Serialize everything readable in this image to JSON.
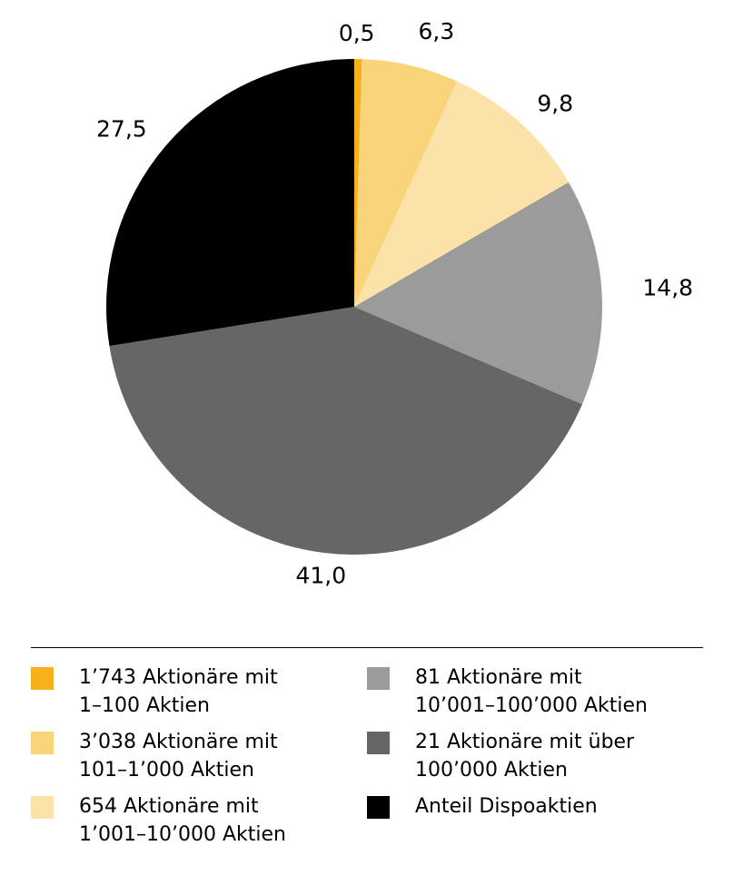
{
  "chart_data": {
    "type": "pie",
    "series": [
      {
        "name": "1’743 Aktionäre mit 1–100 Aktien",
        "value": 0.5,
        "label": "0,5",
        "color": "#F7B21B"
      },
      {
        "name": "3’038 Aktionäre mit 101–1’000 Aktien",
        "value": 6.3,
        "label": "6,3",
        "color": "#FAD47A"
      },
      {
        "name": "654 Aktionäre mit 1’001–10’000 Aktien",
        "value": 9.8,
        "label": "9,8",
        "color": "#FBE2A8"
      },
      {
        "name": "81 Aktionäre mit 10’001–100’000 Aktien",
        "value": 14.8,
        "label": "14,8",
        "color": "#9B9B9B"
      },
      {
        "name": "21 Aktionäre mit über 100’000 Aktien",
        "value": 41.0,
        "label": "41,0",
        "color": "#666666"
      },
      {
        "name": "Anteil Dispoaktien",
        "value": 27.5,
        "label": "27,5",
        "color": "#000000"
      }
    ],
    "legend": {
      "position": "bottom",
      "items": [
        {
          "line1": "1’743 Aktionäre mit",
          "line2": "1–100 Aktien",
          "color": "#F7B21B"
        },
        {
          "line1": "3’038 Aktionäre mit",
          "line2": "101–1’000 Aktien",
          "color": "#FAD47A"
        },
        {
          "line1": "654 Aktionäre mit",
          "line2": "1’001–10’000 Aktien",
          "color": "#FBE2A8"
        },
        {
          "line1": "81 Aktionäre mit",
          "line2": "10’001–100’000 Aktien",
          "color": "#9B9B9B"
        },
        {
          "line1": "21 Aktionäre mit über",
          "line2": "100’000 Aktien",
          "color": "#666666"
        },
        {
          "line1": "Anteil Dispoaktien",
          "line2": "",
          "color": "#000000"
        }
      ]
    }
  }
}
